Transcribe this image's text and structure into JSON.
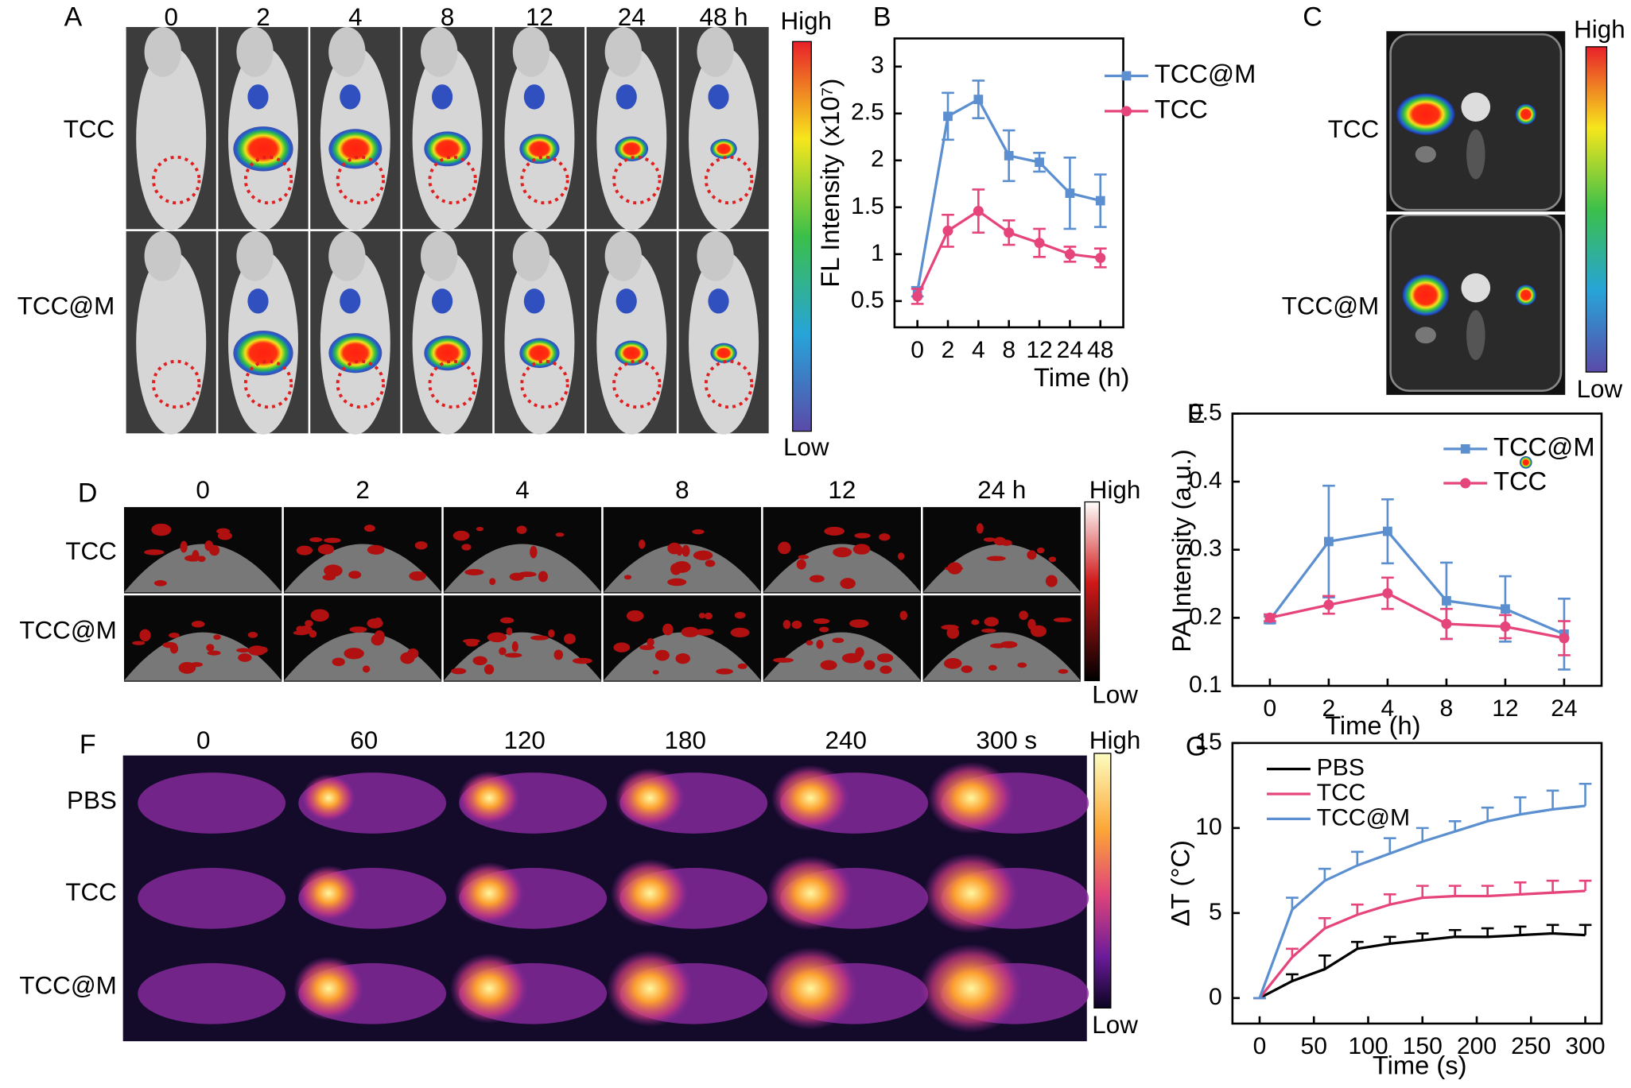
{
  "panels": [
    {
      "label": "A",
      "columns": [
        "0",
        "2",
        "4",
        "8",
        "12",
        "24",
        "48 h"
      ],
      "rows": [
        "TCC",
        "TCC@M"
      ],
      "colorbar": [
        "High",
        "Low"
      ]
    },
    {
      "label": "C",
      "rows": [
        "TCC",
        "TCC@M"
      ],
      "colorbar": [
        "High",
        "Low"
      ]
    },
    {
      "label": "D",
      "columns": [
        "0",
        "2",
        "4",
        "8",
        "12",
        "24 h"
      ],
      "rows": [
        "TCC",
        "TCC@M"
      ],
      "colorbar": [
        "High",
        "Low"
      ]
    },
    {
      "label": "F",
      "columns": [
        "0",
        "60",
        "120",
        "180",
        "240",
        "300 s"
      ],
      "rows": [
        "PBS",
        "TCC",
        "TCC@M"
      ],
      "colorbar": [
        "High",
        "Low"
      ]
    }
  ],
  "chart_data": [
    {
      "type": "line",
      "label": "B",
      "xlabel": "Time (h)",
      "ylabel": "FL Intensity (x10⁷)",
      "categories": [
        "0",
        "2",
        "4",
        "8",
        "12",
        "24",
        "48"
      ],
      "ylim": [
        0.22,
        3.3
      ],
      "yticks": [
        0.5,
        1,
        1.5,
        2,
        2.5,
        3
      ],
      "error_bars": "both",
      "series": [
        {
          "name": "TCC@M",
          "color": "#5b8fd0",
          "marker": "square",
          "values": [
            0.6,
            2.47,
            2.65,
            2.05,
            1.98,
            1.65,
            1.57
          ],
          "errors": [
            0.05,
            0.25,
            0.2,
            0.27,
            0.1,
            0.38,
            0.28
          ]
        },
        {
          "name": "TCC",
          "color": "#e6457c",
          "marker": "circle",
          "values": [
            0.55,
            1.25,
            1.46,
            1.23,
            1.12,
            1.0,
            0.96
          ],
          "errors": [
            0.08,
            0.17,
            0.23,
            0.13,
            0.15,
            0.08,
            0.1
          ]
        }
      ]
    },
    {
      "type": "line",
      "label": "E",
      "xlabel": "Time (h)",
      "ylabel": "PA Intensity (a.u.)",
      "categories": [
        "0",
        "2",
        "4",
        "8",
        "12",
        "24"
      ],
      "ylim": [
        0.1,
        0.5
      ],
      "yticks": [
        0.1,
        0.2,
        0.3,
        0.4,
        0.5
      ],
      "error_bars": "both",
      "series": [
        {
          "name": "TCC@M",
          "color": "#5b8fd0",
          "marker": "square",
          "values": [
            0.197,
            0.312,
            0.327,
            0.225,
            0.213,
            0.176
          ],
          "errors": [
            0.005,
            0.082,
            0.047,
            0.056,
            0.048,
            0.052
          ]
        },
        {
          "name": "TCC",
          "color": "#e6457c",
          "marker": "circle",
          "values": [
            0.2,
            0.219,
            0.236,
            0.191,
            0.187,
            0.17
          ],
          "errors": [
            0.005,
            0.013,
            0.023,
            0.022,
            0.017,
            0.025
          ]
        }
      ]
    },
    {
      "type": "line",
      "label": "G",
      "xlabel": "Time (s)",
      "ylabel": "ΔT (°C)",
      "x": [
        0,
        30,
        60,
        90,
        120,
        150,
        180,
        210,
        240,
        270,
        300
      ],
      "xlim": [
        -25,
        315
      ],
      "xticks": [
        0,
        50,
        100,
        150,
        200,
        250,
        300
      ],
      "ylim": [
        -1.5,
        15
      ],
      "yticks": [
        0,
        5,
        10,
        15
      ],
      "error_bars": "up",
      "series": [
        {
          "name": "PBS",
          "color": "#000000",
          "values": [
            0,
            1.0,
            1.7,
            2.9,
            3.2,
            3.4,
            3.6,
            3.6,
            3.7,
            3.8,
            3.7
          ],
          "errors": [
            0,
            0.4,
            0.8,
            0.4,
            0.4,
            0.4,
            0.4,
            0.5,
            0.5,
            0.5,
            0.6
          ]
        },
        {
          "name": "TCC",
          "color": "#e6457c",
          "values": [
            0,
            2.4,
            4.1,
            4.9,
            5.5,
            5.9,
            6.0,
            6.0,
            6.1,
            6.2,
            6.3
          ],
          "errors": [
            0,
            0.5,
            0.6,
            0.6,
            0.6,
            0.7,
            0.6,
            0.6,
            0.7,
            0.7,
            0.6
          ]
        },
        {
          "name": "TCC@M",
          "color": "#5b8fd0",
          "values": [
            0,
            5.2,
            6.9,
            7.8,
            8.5,
            9.2,
            9.8,
            10.4,
            10.8,
            11.1,
            11.3
          ],
          "errors": [
            0,
            0.7,
            0.7,
            0.8,
            0.9,
            0.8,
            0.6,
            0.8,
            1.0,
            1.1,
            1.3
          ]
        }
      ]
    }
  ]
}
